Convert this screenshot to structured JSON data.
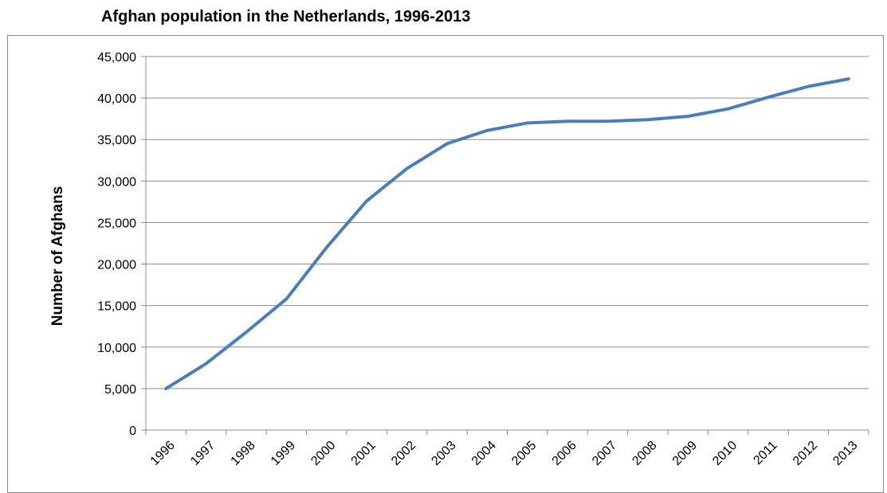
{
  "chart_data": {
    "type": "line",
    "title": "Afghan population in the Netherlands, 1996-2013",
    "xlabel": "",
    "ylabel": "Number of Afghans",
    "x": [
      "1996",
      "1997",
      "1998",
      "1999",
      "2000",
      "2001",
      "2002",
      "2003",
      "2004",
      "2005",
      "2006",
      "2007",
      "2008",
      "2009",
      "2010",
      "2011",
      "2012",
      "2013"
    ],
    "y_ticks": [
      "0",
      "5,000",
      "10,000",
      "15,000",
      "20,000",
      "25,000",
      "30,000",
      "35,000",
      "40,000",
      "45,000"
    ],
    "ylim": [
      0,
      45000
    ],
    "grid": "horizontal",
    "legend": "none",
    "series": [
      {
        "color": "#4a7ebb",
        "values": [
          5000,
          8000,
          11800,
          15800,
          22000,
          27600,
          31500,
          34500,
          36100,
          37000,
          37200,
          37200,
          37400,
          37800,
          38700,
          40100,
          41400,
          42300
        ]
      }
    ]
  }
}
